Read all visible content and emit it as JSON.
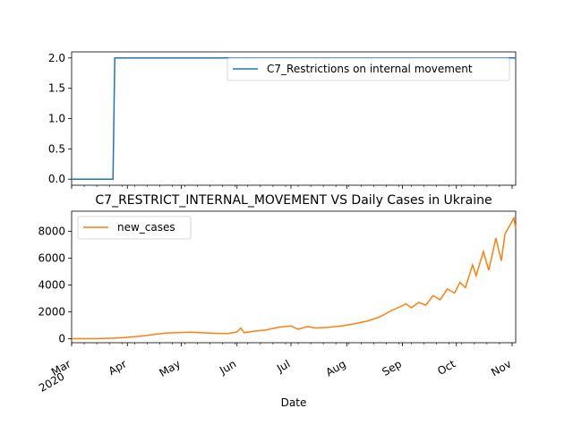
{
  "chart_data": [
    {
      "type": "line",
      "title": "",
      "xlabel": "",
      "ylabel": "",
      "ylim": [
        -0.1,
        2.1
      ],
      "y_ticks": [
        "0.0",
        "0.5",
        "1.0",
        "1.5",
        "2.0"
      ],
      "legend": "top-right",
      "series": [
        {
          "name": "C7_Restrictions on internal movement",
          "color": "#1f77b4",
          "points": [
            [
              "2020-03-01",
              0
            ],
            [
              "2020-03-24",
              0
            ],
            [
              "2020-03-25",
              2
            ],
            [
              "2020-11-03",
              2
            ]
          ]
        }
      ]
    },
    {
      "type": "line",
      "title": "C7_RESTRICT_INTERNAL_MOVEMENT VS Daily Cases in Ukraine",
      "xlabel": "Date",
      "ylabel": "",
      "ylim": [
        -300,
        9500
      ],
      "y_ticks": [
        "0",
        "2000",
        "4000",
        "6000",
        "8000"
      ],
      "x_ticks": [
        {
          "label": "Mar",
          "sublabel": "2020",
          "date": "2020-03-01"
        },
        {
          "label": "Apr",
          "date": "2020-04-01"
        },
        {
          "label": "May",
          "date": "2020-05-01"
        },
        {
          "label": "Jun",
          "date": "2020-06-01"
        },
        {
          "label": "Jul",
          "date": "2020-07-01"
        },
        {
          "label": "Aug",
          "date": "2020-08-01"
        },
        {
          "label": "Sep",
          "date": "2020-09-01"
        },
        {
          "label": "Oct",
          "date": "2020-10-01"
        },
        {
          "label": "Nov",
          "date": "2020-11-01"
        }
      ],
      "legend": "top-left",
      "series": [
        {
          "name": "new_cases",
          "color": "#ff7f0e",
          "points": [
            [
              "2020-03-01",
              0
            ],
            [
              "2020-03-15",
              5
            ],
            [
              "2020-03-25",
              40
            ],
            [
              "2020-04-01",
              100
            ],
            [
              "2020-04-08",
              180
            ],
            [
              "2020-04-15",
              300
            ],
            [
              "2020-04-22",
              420
            ],
            [
              "2020-04-29",
              450
            ],
            [
              "2020-05-06",
              480
            ],
            [
              "2020-05-13",
              440
            ],
            [
              "2020-05-20",
              400
            ],
            [
              "2020-05-27",
              380
            ],
            [
              "2020-06-01",
              500
            ],
            [
              "2020-06-03",
              800
            ],
            [
              "2020-06-05",
              450
            ],
            [
              "2020-06-10",
              550
            ],
            [
              "2020-06-17",
              650
            ],
            [
              "2020-06-24",
              850
            ],
            [
              "2020-07-01",
              950
            ],
            [
              "2020-07-05",
              700
            ],
            [
              "2020-07-10",
              900
            ],
            [
              "2020-07-15",
              800
            ],
            [
              "2020-07-22",
              850
            ],
            [
              "2020-07-29",
              950
            ],
            [
              "2020-08-05",
              1100
            ],
            [
              "2020-08-12",
              1300
            ],
            [
              "2020-08-19",
              1600
            ],
            [
              "2020-08-26",
              2100
            ],
            [
              "2020-08-31",
              2400
            ],
            [
              "2020-09-03",
              2600
            ],
            [
              "2020-09-06",
              2300
            ],
            [
              "2020-09-10",
              2700
            ],
            [
              "2020-09-14",
              2500
            ],
            [
              "2020-09-18",
              3200
            ],
            [
              "2020-09-22",
              2900
            ],
            [
              "2020-09-26",
              3700
            ],
            [
              "2020-09-30",
              3400
            ],
            [
              "2020-10-03",
              4200
            ],
            [
              "2020-10-06",
              3800
            ],
            [
              "2020-10-10",
              5500
            ],
            [
              "2020-10-12",
              4700
            ],
            [
              "2020-10-16",
              6500
            ],
            [
              "2020-10-19",
              5100
            ],
            [
              "2020-10-23",
              7500
            ],
            [
              "2020-10-26",
              5800
            ],
            [
              "2020-10-28",
              7800
            ],
            [
              "2020-10-31",
              8500
            ],
            [
              "2020-11-02",
              9000
            ],
            [
              "2020-11-03",
              8200
            ]
          ]
        }
      ]
    }
  ]
}
